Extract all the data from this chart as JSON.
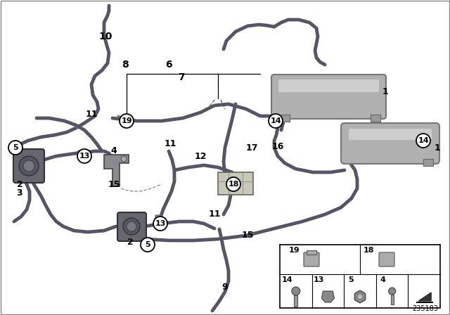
{
  "bg_color": "#ffffff",
  "diagram_id": "235183",
  "hose_color": "#555566",
  "hose_lw": 3.5,
  "hose_lw2": 2.5,
  "res_color": "#aaaaaa",
  "res_light": "#cccccc",
  "res_dark": "#888888",
  "text_color": "#000000",
  "thin_line": "#888888"
}
